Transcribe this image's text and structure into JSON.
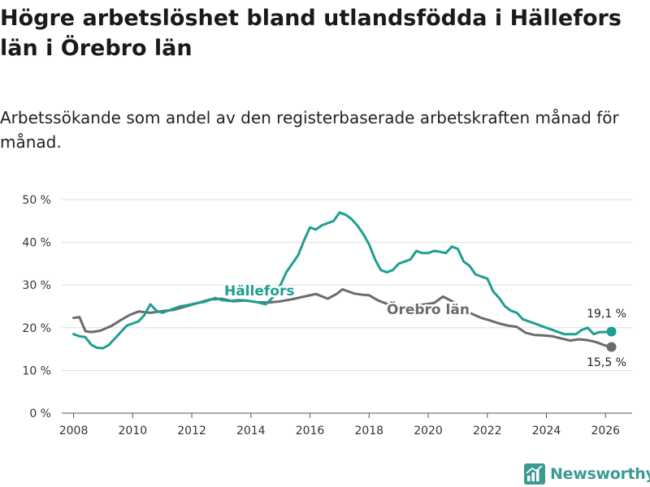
{
  "title": "Högre arbetslöshet bland utlandsfödda i Hällefors län i Örebro län",
  "subtitle": "Arbetssökande som andel av den registerbaserade arbetskraften månad för månad.",
  "brand": {
    "name": "Newsworthy",
    "icon": "newsworthy-logo-icon",
    "color": "#3c9a93"
  },
  "chart_data": {
    "type": "line",
    "ylim": [
      0,
      50
    ],
    "xlim": [
      2007.6,
      2026.9
    ],
    "y_ticks": [
      0,
      10,
      20,
      30,
      40,
      50
    ],
    "y_tick_labels": [
      "0 %",
      "10 %",
      "20 %",
      "30 %",
      "40 %",
      "50 %"
    ],
    "x_ticks": [
      2008,
      2010,
      2012,
      2014,
      2016,
      2018,
      2020,
      2022,
      2024,
      2026
    ],
    "x_tick_labels": [
      "2008",
      "2010",
      "2012",
      "2014",
      "2016",
      "2018",
      "2020",
      "2022",
      "2024",
      "2026"
    ],
    "grid": true,
    "series": [
      {
        "name": "Örebro län",
        "label": "Örebro län",
        "color": "#6b6b6f",
        "end_label": "15,5 %",
        "end_value": 15.5,
        "x": [
          2008.0,
          2008.2,
          2008.4,
          2008.6,
          2008.9,
          2009.3,
          2009.6,
          2009.9,
          2010.2,
          2010.6,
          2011.0,
          2011.4,
          2011.8,
          2012.2,
          2012.6,
          2013.0,
          2013.4,
          2013.8,
          2014.2,
          2014.6,
          2015.0,
          2015.4,
          2015.8,
          2016.2,
          2016.6,
          2016.9,
          2017.1,
          2017.5,
          2017.8,
          2018.0,
          2018.3,
          2018.6,
          2019.0,
          2019.4,
          2019.8,
          2020.2,
          2020.5,
          2020.7,
          2020.9,
          2021.2,
          2021.5,
          2021.8,
          2022.1,
          2022.4,
          2022.7,
          2023.0,
          2023.3,
          2023.6,
          2023.9,
          2024.2,
          2024.5,
          2024.8,
          2025.1,
          2025.4,
          2025.7,
          2026.0,
          2026.2
        ],
        "y": [
          22.3,
          22.5,
          19.2,
          19.0,
          19.3,
          20.5,
          21.8,
          23.0,
          23.8,
          23.5,
          23.9,
          24.2,
          25.0,
          25.8,
          26.6,
          26.8,
          26.2,
          26.4,
          26.0,
          25.9,
          26.2,
          26.7,
          27.3,
          27.9,
          26.8,
          27.9,
          29.0,
          28.0,
          27.7,
          27.6,
          26.4,
          25.6,
          25.2,
          25.0,
          25.4,
          25.8,
          27.3,
          26.6,
          25.9,
          24.0,
          23.2,
          22.3,
          21.7,
          21.0,
          20.5,
          20.2,
          18.8,
          18.3,
          18.2,
          18.0,
          17.5,
          17.0,
          17.3,
          17.1,
          16.6,
          15.8,
          15.5
        ]
      },
      {
        "name": "Hällefors",
        "label": "Hällefors",
        "color": "#1f9e91",
        "end_label": "19,1 %",
        "end_value": 19.1,
        "x": [
          2008.0,
          2008.2,
          2008.4,
          2008.6,
          2008.8,
          2009.0,
          2009.2,
          2009.4,
          2009.6,
          2009.8,
          2010.0,
          2010.2,
          2010.4,
          2010.6,
          2010.8,
          2011.0,
          2011.2,
          2011.4,
          2011.6,
          2011.8,
          2012.0,
          2012.2,
          2012.4,
          2012.6,
          2012.8,
          2013.0,
          2013.3,
          2013.6,
          2013.9,
          2014.2,
          2014.5,
          2014.8,
          2015.0,
          2015.2,
          2015.4,
          2015.6,
          2015.8,
          2016.0,
          2016.2,
          2016.4,
          2016.6,
          2016.8,
          2017.0,
          2017.2,
          2017.4,
          2017.6,
          2017.8,
          2018.0,
          2018.2,
          2018.4,
          2018.6,
          2018.8,
          2019.0,
          2019.2,
          2019.4,
          2019.6,
          2019.8,
          2020.0,
          2020.2,
          2020.4,
          2020.6,
          2020.8,
          2021.0,
          2021.2,
          2021.4,
          2021.6,
          2021.8,
          2022.0,
          2022.2,
          2022.4,
          2022.6,
          2022.8,
          2023.0,
          2023.2,
          2023.4,
          2023.6,
          2023.8,
          2024.0,
          2024.2,
          2024.4,
          2024.6,
          2024.8,
          2025.0,
          2025.2,
          2025.4,
          2025.6,
          2025.8,
          2026.0,
          2026.2
        ],
        "y": [
          18.5,
          18.0,
          17.8,
          16.0,
          15.3,
          15.2,
          16.0,
          17.5,
          19.0,
          20.5,
          21.0,
          21.5,
          23.0,
          25.5,
          24.0,
          23.5,
          24.0,
          24.5,
          25.0,
          25.2,
          25.5,
          25.8,
          26.0,
          26.5,
          27.0,
          26.5,
          26.3,
          26.5,
          26.3,
          26.0,
          25.5,
          27.5,
          30.0,
          33.0,
          35.0,
          37.0,
          40.5,
          43.5,
          43.0,
          44.0,
          44.5,
          45.0,
          47.0,
          46.5,
          45.5,
          44.0,
          42.0,
          39.5,
          36.0,
          33.5,
          33.0,
          33.5,
          35.0,
          35.5,
          36.0,
          38.0,
          37.5,
          37.5,
          38.0,
          37.8,
          37.5,
          39.0,
          38.5,
          35.5,
          34.5,
          32.5,
          32.0,
          31.5,
          28.5,
          27.0,
          25.0,
          24.0,
          23.5,
          22.0,
          21.5,
          21.0,
          20.5,
          20.0,
          19.5,
          19.0,
          18.5,
          18.5,
          18.5,
          19.5,
          20.0,
          18.5,
          19.0,
          19.0,
          19.1
        ]
      }
    ]
  }
}
